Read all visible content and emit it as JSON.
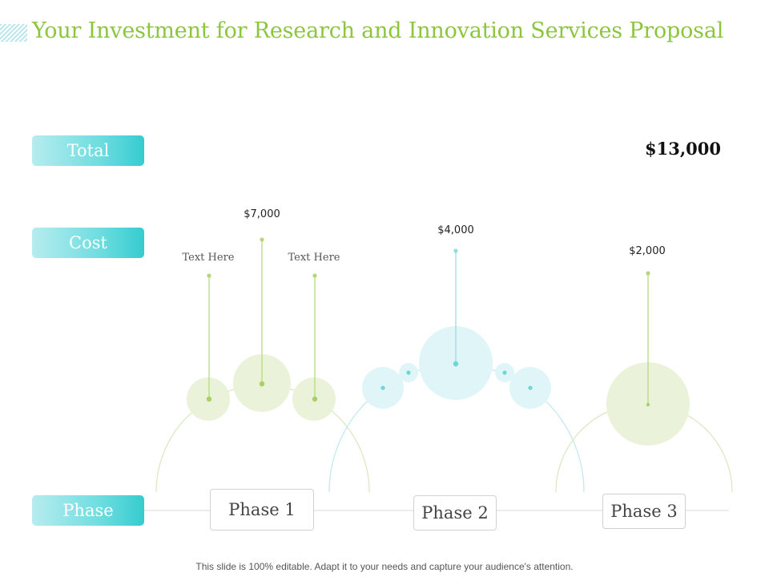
{
  "slide": {
    "title": "Your Investment for Research and Innovation Services Proposal",
    "footer": "This slide is 100% editable. Adapt it to your needs and capture your audience's attention."
  },
  "rows": {
    "total_label": "Total",
    "cost_label": "Cost",
    "phase_label": "Phase",
    "total_value": "$13,000"
  },
  "phases": [
    {
      "label": "Phase 1",
      "cost": "$7,000",
      "sub_labels": [
        "Text Here",
        "Text Here"
      ]
    },
    {
      "label": "Phase 2",
      "cost": "$4,000"
    },
    {
      "label": "Phase 3",
      "cost": "$2,000"
    }
  ],
  "colors": {
    "accent_green": "#8cc63f",
    "accent_teal": "#35cccf",
    "bubble_green": "#eaf3d9",
    "bubble_teal": "#dff5f7"
  }
}
